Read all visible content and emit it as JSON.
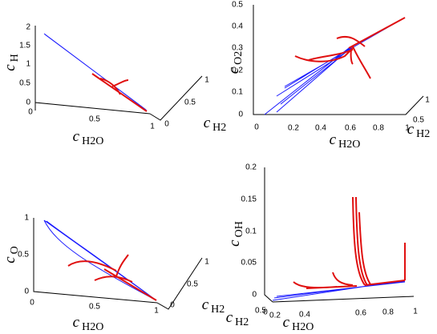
{
  "panels": [
    {
      "y_label": {
        "symbol": "c",
        "subscript": "H"
      },
      "x_label": {
        "symbol": "c",
        "subscript": "H2O"
      },
      "z_label": {
        "symbol": "c",
        "subscript": "H2"
      },
      "yticks": [
        "2",
        "1.5",
        "1",
        "0.5",
        "0"
      ],
      "xticks": [
        "0",
        "0.5",
        "1"
      ],
      "zticks": [
        "0",
        "0.5",
        "1"
      ]
    },
    {
      "y_label": {
        "symbol": "c",
        "subscript": "O2"
      },
      "x_label": {
        "symbol": "c",
        "subscript": "H2O"
      },
      "z_label": {
        "symbol": "c",
        "subscript": "H2"
      },
      "yticks": [
        "0.5",
        "0.4",
        "0.3",
        "0.2",
        "0.1",
        "0"
      ],
      "xticks": [
        "0",
        "0.2",
        "0.4",
        "0.6",
        "0.8",
        "1"
      ],
      "zticks": [
        "0.5",
        "1"
      ]
    },
    {
      "y_label": {
        "symbol": "c",
        "subscript": "O"
      },
      "x_label": {
        "symbol": "c",
        "subscript": "H2O"
      },
      "z_label": {
        "symbol": "c",
        "subscript": "H2"
      },
      "yticks": [
        "1",
        "0.5",
        "0"
      ],
      "xticks": [
        "0",
        "0.5",
        "1"
      ],
      "zticks": [
        "0",
        "0.5",
        "1"
      ]
    },
    {
      "y_label": {
        "symbol": "c",
        "subscript": "OH"
      },
      "x_label": {
        "symbol": "c",
        "subscript": "H2O"
      },
      "z_label": {
        "symbol": "c",
        "subscript": "H2"
      },
      "yticks": [
        "0.2",
        "0.15",
        "0.1",
        "0.05",
        "0"
      ],
      "xticks": [
        "0.2",
        "0.4",
        "0.6",
        "0.8",
        "1"
      ],
      "zticks": [
        "0.5",
        "0"
      ]
    }
  ]
}
